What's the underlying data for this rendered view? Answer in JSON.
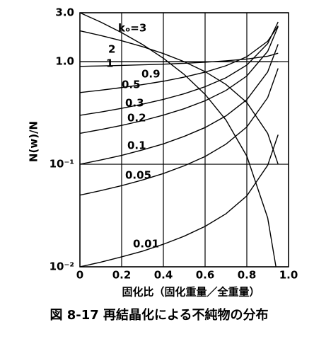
{
  "chart_data": {
    "type": "line",
    "y_scale": "log",
    "ylabel": "N(w)/N",
    "xlabel": "固化比（固化重量／全重量）",
    "caption": "図 8-17 再結晶化による不純物の分布",
    "x": [
      0,
      0.1,
      0.2,
      0.3,
      0.4,
      0.5,
      0.6,
      0.7,
      0.8,
      0.9,
      0.95
    ],
    "series": [
      {
        "name": "kₒ=3",
        "color": "#000000",
        "values": [
          3,
          2.43,
          1.92,
          1.47,
          1.08,
          0.75,
          0.48,
          0.27,
          0.12,
          0.03,
          0.0075
        ]
      },
      {
        "name": "2",
        "color": "#000000",
        "values": [
          2,
          1.8,
          1.6,
          1.4,
          1.2,
          1.0,
          0.8,
          0.6,
          0.4,
          0.2,
          0.1
        ]
      },
      {
        "name": "1",
        "color": "#000000",
        "values": [
          1,
          1,
          1,
          1,
          1,
          1,
          1,
          1,
          1,
          1,
          1
        ]
      },
      {
        "name": "0.9",
        "color": "#000000",
        "values": [
          0.9,
          0.909,
          0.92,
          0.932,
          0.946,
          0.965,
          0.988,
          1.02,
          1.06,
          1.13,
          1.21
        ]
      },
      {
        "name": "0.5",
        "color": "#000000",
        "values": [
          0.5,
          0.527,
          0.559,
          0.598,
          0.645,
          0.707,
          0.791,
          0.913,
          1.118,
          1.581,
          2.236
        ]
      },
      {
        "name": "0.3",
        "color": "#000000",
        "values": [
          0.3,
          0.323,
          0.351,
          0.385,
          0.429,
          0.487,
          0.57,
          0.697,
          0.926,
          1.5,
          2.44
        ]
      },
      {
        "name": "0.2",
        "color": "#000000",
        "values": [
          0.2,
          0.218,
          0.239,
          0.266,
          0.301,
          0.348,
          0.416,
          0.524,
          0.725,
          1.26,
          2.2
        ]
      },
      {
        "name": "0.1",
        "color": "#000000",
        "values": [
          0.1,
          0.11,
          0.122,
          0.138,
          0.158,
          0.187,
          0.228,
          0.296,
          0.426,
          0.794,
          1.48
        ]
      },
      {
        "name": "0.05",
        "color": "#000000",
        "values": [
          0.05,
          0.0553,
          0.0618,
          0.0702,
          0.0812,
          0.0966,
          0.119,
          0.157,
          0.231,
          0.446,
          0.861
        ]
      },
      {
        "name": "0.01",
        "color": "#000000",
        "values": [
          0.01,
          0.0111,
          0.0125,
          0.0142,
          0.0166,
          0.0199,
          0.0248,
          0.0329,
          0.0492,
          0.0977,
          0.194
        ]
      }
    ],
    "xlim": [
      0,
      1.0
    ],
    "ylim": [
      0.01,
      3
    ],
    "xticks": [
      0,
      0.2,
      0.4,
      0.6,
      0.8,
      {
        "value": 1.0,
        "label": "1.0"
      }
    ],
    "yticks": [
      {
        "value": 0.01,
        "label": "10⁻²"
      },
      {
        "value": 0.1,
        "label": "10⁻¹"
      },
      {
        "value": 1,
        "label": "1.0"
      },
      {
        "value": 3,
        "label": "3.0"
      }
    ],
    "grid": true
  }
}
